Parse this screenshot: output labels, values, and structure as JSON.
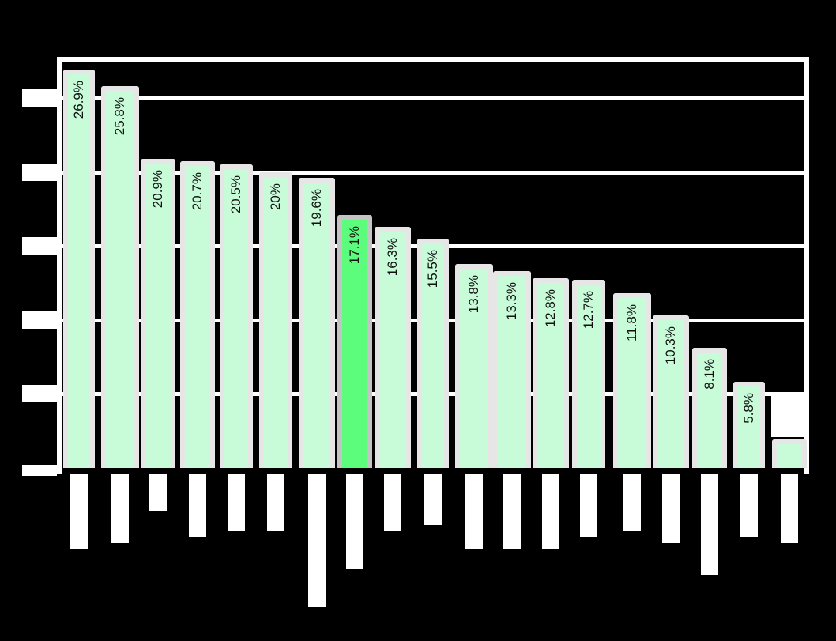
{
  "chart_data": {
    "type": "bar",
    "title": "",
    "xlabel": "",
    "ylabel": "",
    "ylim": [
      0,
      27
    ],
    "grid": true,
    "y_gridlines": [
      5,
      10,
      15,
      20,
      25
    ],
    "categories": [
      "",
      "",
      "",
      "",
      "",
      "",
      "",
      "",
      "",
      "",
      "",
      "",
      "",
      "",
      "",
      "",
      "",
      "",
      ""
    ],
    "values": [
      26.9,
      25.8,
      20.9,
      20.7,
      20.5,
      20.0,
      19.6,
      17.1,
      16.3,
      15.5,
      13.8,
      13.3,
      12.8,
      12.7,
      11.8,
      10.3,
      8.1,
      5.8,
      1.9
    ],
    "labels": [
      "26.9%",
      "25.8%",
      "20.9%",
      "20.7%",
      "20.5%",
      "20%",
      "19.6%",
      "17.1%",
      "16.3%",
      "15.5%",
      "13.8%",
      "13.3%",
      "12.8%",
      "12.7%",
      "11.8%",
      "10.3%",
      "8.1%",
      "5.8%",
      ""
    ],
    "highlight_index": 7,
    "colors": {
      "bar": "#c8fcd9",
      "highlight": "#5cfc7c",
      "background": "#000000",
      "grid": "#ffffff"
    }
  }
}
